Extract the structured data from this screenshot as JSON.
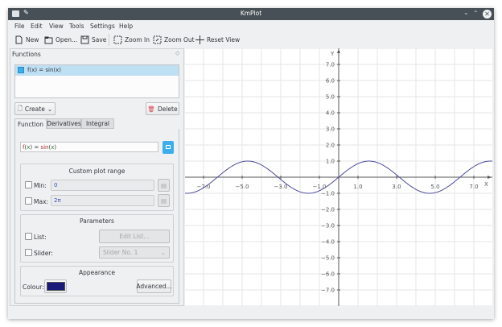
{
  "window": {
    "title": "KmPlot"
  },
  "menu": [
    "File",
    "Edit",
    "View",
    "Tools",
    "Settings",
    "Help"
  ],
  "toolbar": {
    "new": "New",
    "open": "Open...",
    "save": "Save",
    "zoom_in": "Zoom In",
    "zoom_out": "Zoom Out",
    "reset_view": "Reset View"
  },
  "functions_panel": {
    "title": "Functions",
    "items": [
      {
        "label": "f(x) = sin(x)",
        "checked": true,
        "selected": true
      }
    ],
    "create": "Create",
    "delete": "Delete",
    "tabs": [
      "Function",
      "Derivatives",
      "Integral"
    ],
    "active_tab": "Function",
    "equation": {
      "name": "f",
      "var": "x",
      "eq": " = ",
      "func": "sin"
    },
    "plot_range": {
      "title": "Custom plot range",
      "min_label": "Min:",
      "min_value": "0",
      "max_label": "Max:",
      "max_value": "2π"
    },
    "parameters": {
      "title": "Parameters",
      "list_label": "List:",
      "edit_list": "Edit List...",
      "slider_label": "Slider:",
      "slider_value": "Slider No. 1"
    },
    "appearance": {
      "title": "Appearance",
      "colour_label": "Colour:",
      "colour": "#1a1a7a",
      "advanced": "Advanced..."
    }
  },
  "plot": {
    "x_axis_label": "X",
    "y_axis_label": "Y",
    "x_ticks": [
      "−7.0",
      "−5.0",
      "−3.0",
      "−1.0",
      "1.0",
      "3.0",
      "5.0",
      "7.0"
    ],
    "y_ticks": [
      "7.0",
      "6.0",
      "5.0",
      "4.0",
      "3.0",
      "2.0",
      "1.0",
      "−1.0",
      "−2.0",
      "−3.0",
      "−4.0",
      "−5.0",
      "−6.0",
      "−7.0"
    ],
    "curve_color": "#4b4b9a",
    "function": "sin(x)"
  }
}
